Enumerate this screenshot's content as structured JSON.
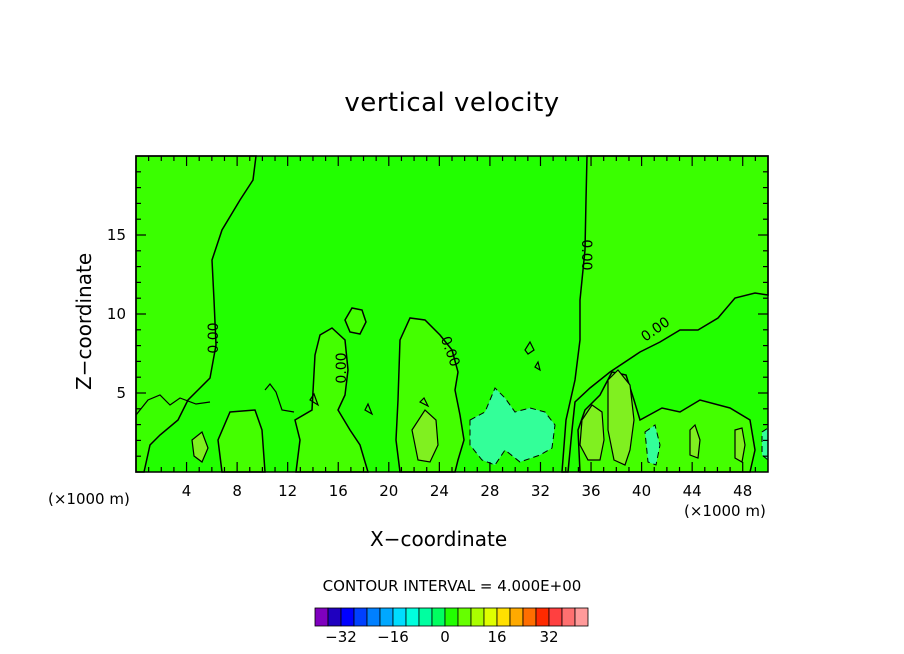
{
  "chart_data": {
    "type": "contour",
    "title": "vertical velocity",
    "xlabel": "X−coordinate",
    "ylabel": "Z−coordinate",
    "x_unit_left": "(×1000 m)",
    "x_unit_right": "(×1000 m)",
    "xlim": [
      0,
      50
    ],
    "ylim": [
      0,
      20
    ],
    "x_ticks": [
      "4",
      "8",
      "12",
      "16",
      "20",
      "24",
      "28",
      "32",
      "36",
      "40",
      "44",
      "48"
    ],
    "x_tick_values": [
      4,
      8,
      12,
      16,
      20,
      24,
      28,
      32,
      36,
      40,
      44,
      48
    ],
    "y_ticks": [
      "5",
      "10",
      "15"
    ],
    "y_tick_values": [
      5,
      10,
      15
    ],
    "contour_labels": [
      "0.00",
      "0.00",
      "0.00",
      "0.00",
      "0.00"
    ],
    "contour_interval_text": "CONTOUR INTERVAL = 4.000E+00",
    "colorbar_labels": [
      "−32",
      "−16",
      "0",
      "16",
      "32"
    ],
    "colorbar_colors": [
      "#7f00bf",
      "#1f00bf",
      "#0000ff",
      "#0040ff",
      "#0080ff",
      "#00a8ff",
      "#00ddff",
      "#00ffdd",
      "#00ffa0",
      "#00ff60",
      "#22ff00",
      "#66ff00",
      "#aaff00",
      "#dfff00",
      "#ffe000",
      "#ffaa00",
      "#ff6e00",
      "#ff2a00",
      "#ff4040",
      "#ff7070",
      "#ff9a9a"
    ],
    "field_colors": {
      "background": "#22ff00",
      "positive": "#44ff00",
      "strong_positive": "#80f020",
      "negative": "#22ff44",
      "strong_negative": "#33ff99"
    }
  }
}
